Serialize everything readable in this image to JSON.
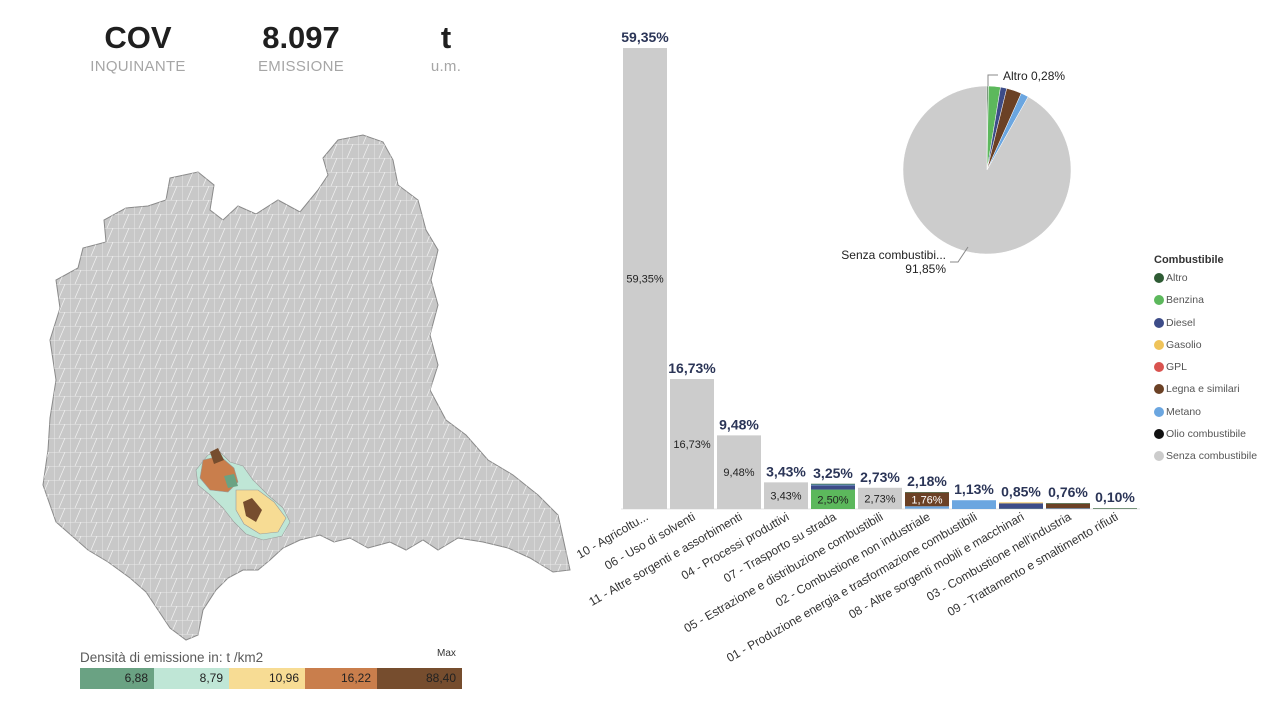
{
  "kpis": [
    {
      "value": "COV",
      "label": "INQUINANTE"
    },
    {
      "value": "8.097",
      "label": "EMISSIONE"
    },
    {
      "value": "t",
      "label": "u.m."
    }
  ],
  "map": {
    "legend_title": "Densità di emissione in:  t /km2",
    "legend_max": "Max",
    "legend_values": [
      "6,88",
      "8,79",
      "10,96",
      "16,22",
      "88,40"
    ],
    "legend_colors": [
      "#6aa283",
      "#bfe6d6",
      "#f7dc94",
      "#c97e4c",
      "#764d2e"
    ]
  },
  "colors": {
    "Altro": "#2e5b34",
    "Benzina": "#5cb85c",
    "Diesel": "#3d4c88",
    "Gasolio": "#efc35a",
    "GPL": "#d9534f",
    "Legna e similari": "#6b4125",
    "Metano": "#6ba6e0",
    "Olio combustibile": "#111111",
    "Senza combustibile": "#cccccc"
  },
  "chart_data": [
    {
      "type": "bar",
      "stacked": true,
      "categories": [
        "10 - Agricoltu...",
        "06 - Uso di solventi",
        "11 - Altre sorgenti e assorbimenti",
        "04 - Processi produttivi",
        "07 - Trasporto su strada",
        "05 - Estrazione e distribuzione combustibili",
        "02 - Combustione non industriale",
        "01 - Produzione energia e trasformazione combustibili",
        "08 - Altre sorgenti mobili e macchinari",
        "03 - Combustione nell'industria",
        "09 - Trattamento e smaltimento rifiuti"
      ],
      "totals": [
        59.35,
        16.73,
        9.48,
        3.43,
        3.25,
        2.73,
        2.18,
        1.13,
        0.85,
        0.76,
        0.1
      ],
      "total_labels": [
        "59,35%",
        "16,73%",
        "9,48%",
        "3,43%",
        "3,25%",
        "2,73%",
        "2,18%",
        "1,13%",
        "0,85%",
        "0,76%",
        "0,10%"
      ],
      "series": [
        {
          "name": "Senza combustibile",
          "values": [
            59.35,
            16.73,
            9.48,
            3.43,
            0,
            2.73,
            0.05,
            0,
            0,
            0,
            0.02
          ]
        },
        {
          "name": "Benzina",
          "values": [
            0,
            0,
            0,
            0,
            2.5,
            0,
            0,
            0,
            0.03,
            0,
            0
          ]
        },
        {
          "name": "Diesel",
          "values": [
            0,
            0,
            0,
            0,
            0.55,
            0,
            0,
            0,
            0.7,
            0,
            0
          ]
        },
        {
          "name": "Gasolio",
          "values": [
            0,
            0,
            0,
            0,
            0,
            0,
            0,
            0,
            0.12,
            0,
            0
          ]
        },
        {
          "name": "Metano",
          "values": [
            0,
            0,
            0,
            0,
            0.1,
            0,
            0.3,
            1.13,
            0,
            0.08,
            0
          ]
        },
        {
          "name": "Legna e similari",
          "values": [
            0,
            0,
            0,
            0,
            0,
            0,
            1.76,
            0,
            0,
            0.6,
            0
          ]
        },
        {
          "name": "Altro",
          "values": [
            0,
            0,
            0,
            0,
            0.1,
            0,
            0.07,
            0,
            0,
            0.08,
            0.08
          ]
        }
      ],
      "segment_labels": [
        {
          "category": 0,
          "series": "Senza combustibile",
          "text": "59,35%"
        },
        {
          "category": 1,
          "series": "Senza combustibile",
          "text": "16,73%"
        },
        {
          "category": 2,
          "series": "Senza combustibile",
          "text": "9,48%"
        },
        {
          "category": 3,
          "series": "Senza combustibile",
          "text": "3,43%"
        },
        {
          "category": 4,
          "series": "Benzina",
          "text": "2,50%"
        },
        {
          "category": 5,
          "series": "Senza combustibile",
          "text": "2,73%"
        },
        {
          "category": 6,
          "series": "Legna e similari",
          "text": "1,76%"
        }
      ],
      "ylim": [
        0,
        60
      ]
    },
    {
      "type": "pie",
      "slices": [
        {
          "name": "Altro",
          "value": 0.28
        },
        {
          "name": "Benzina",
          "value": 2.3
        },
        {
          "name": "Diesel",
          "value": 1.2
        },
        {
          "name": "Legna e similari",
          "value": 2.9
        },
        {
          "name": "Metano",
          "value": 1.47
        },
        {
          "name": "Senza combustibile",
          "value": 91.85
        }
      ],
      "labels": [
        {
          "name": "Altro",
          "text": "Altro 0,28%"
        },
        {
          "name": "Senza combustibile",
          "text": "Senza combustibi...",
          "text2": "91,85%"
        }
      ],
      "legend_title": "Combustibile",
      "legend": [
        "Altro",
        "Benzina",
        "Diesel",
        "Gasolio",
        "GPL",
        "Legna e similari",
        "Metano",
        "Olio combustibile",
        "Senza combustibile"
      ],
      "legend_position": "right"
    }
  ]
}
